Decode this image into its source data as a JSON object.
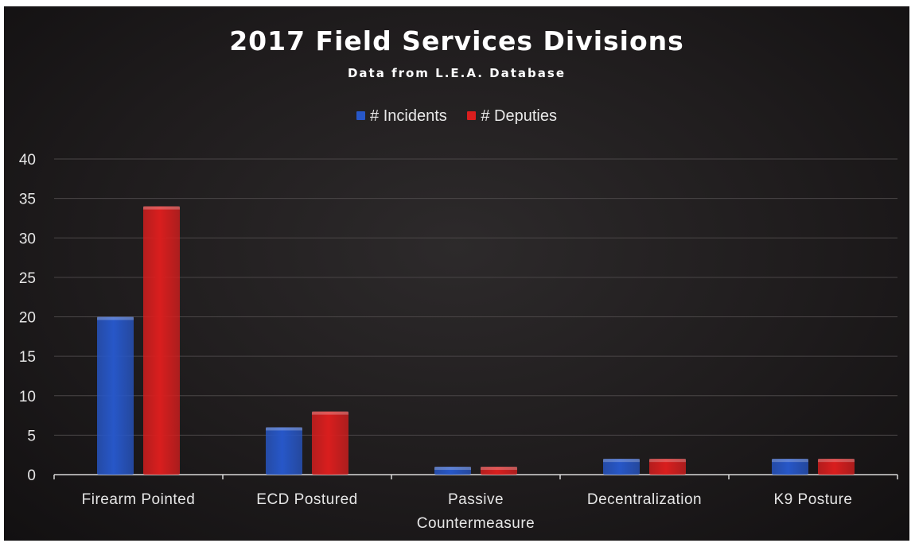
{
  "chart_data": {
    "type": "bar",
    "title": "2017 Field Services Divisions",
    "subtitle": "Data from L.E.A. Database",
    "categories": [
      "Firearm Pointed",
      "ECD Postured",
      "Passive Countermeasure",
      "Decentralization",
      "K9 Posture"
    ],
    "category_lines": [
      [
        "Firearm Pointed"
      ],
      [
        "ECD Postured"
      ],
      [
        "Passive",
        "Countermeasure"
      ],
      [
        "Decentralization"
      ],
      [
        "K9 Posture"
      ]
    ],
    "series": [
      {
        "name": "# Incidents",
        "values": [
          20,
          6,
          1,
          2,
          2
        ],
        "color": "#2757c8"
      },
      {
        "name": "# Deputies",
        "values": [
          34,
          8,
          1,
          2,
          2
        ],
        "color": "#d91e1e"
      }
    ],
    "ylim": [
      0,
      40
    ],
    "yticks": [
      0,
      5,
      10,
      15,
      20,
      25,
      30,
      35,
      40
    ],
    "xlabel": "",
    "ylabel": "",
    "grid": true,
    "legend_position": "top-center",
    "colors": {
      "background": "#1f1c1d",
      "text": "#ffffff",
      "grid": "#4a4647"
    }
  }
}
